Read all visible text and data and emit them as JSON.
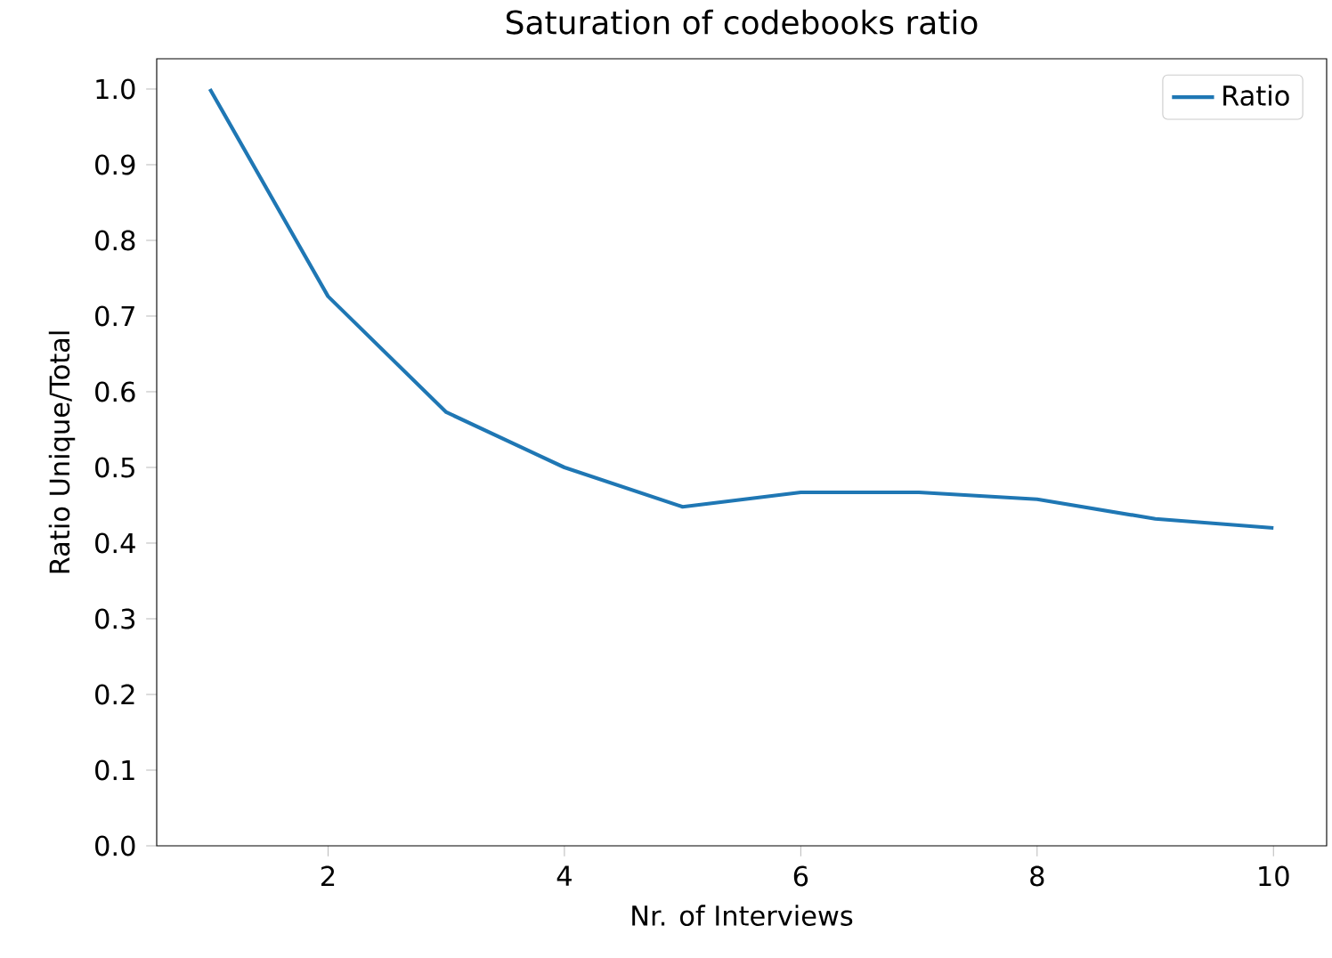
{
  "chart_data": {
    "type": "line",
    "title": "Saturation of codebooks ratio",
    "xlabel": "Nr. of Interviews",
    "ylabel": "Ratio Unique/Total",
    "x": [
      1,
      2,
      3,
      4,
      5,
      6,
      7,
      8,
      9,
      10
    ],
    "series": [
      {
        "name": "Ratio",
        "color": "#1f77b4",
        "values": [
          1.0,
          0.726,
          0.573,
          0.5,
          0.448,
          0.467,
          0.467,
          0.458,
          0.432,
          0.42
        ]
      }
    ],
    "xlim": [
      0.55,
      10.45
    ],
    "ylim": [
      0,
      1.04
    ],
    "xticks": [
      2,
      4,
      6,
      8,
      10
    ],
    "yticks": [
      {
        "value": 0,
        "label": "0.0"
      },
      0.1,
      0.2,
      0.3,
      0.4,
      0.5,
      0.6,
      0.7,
      0.8,
      0.9,
      {
        "value": 1,
        "label": "1.0"
      }
    ],
    "legend": "top right",
    "grid": false,
    "marker": "none",
    "line_style": "solid"
  }
}
